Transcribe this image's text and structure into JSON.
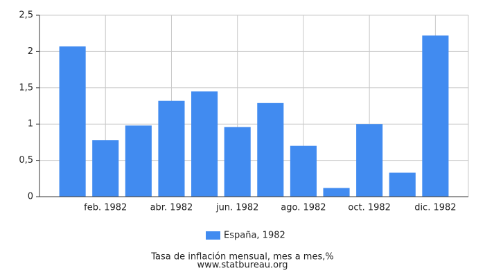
{
  "chart_data": {
    "type": "bar",
    "categories": [
      null,
      "feb. 1982",
      null,
      "abr. 1982",
      null,
      "jun. 1982",
      null,
      "ago. 1982",
      null,
      "oct. 1982",
      null,
      "dic. 1982"
    ],
    "series": [
      {
        "name": "España, 1982",
        "color": "#418bf0",
        "values": [
          2.07,
          0.78,
          0.98,
          1.32,
          1.45,
          0.96,
          1.29,
          0.7,
          0.12,
          1.0,
          0.33,
          2.22
        ]
      }
    ],
    "ylim": [
      0,
      2.5
    ],
    "yticks": [
      0,
      {
        "value": 0.5,
        "label": "0,5"
      },
      1,
      {
        "value": 1.5,
        "label": "1,5"
      },
      2,
      {
        "value": 2.5,
        "label": "2,5"
      }
    ],
    "grid": true,
    "legend": "bottom",
    "caption": "Tasa de inflación mensual, mes a mes,%",
    "source": "www.statbureau.org"
  }
}
